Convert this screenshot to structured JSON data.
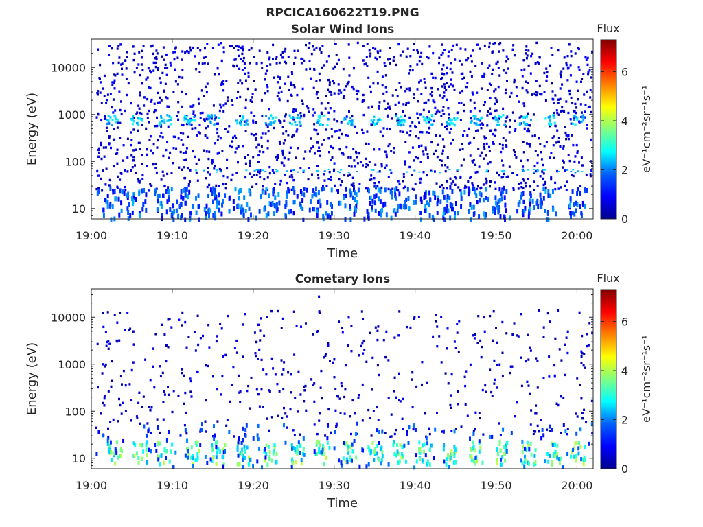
{
  "figure_title": "RPCICA160622T19.PNG",
  "colormap": [
    "#00008f",
    "#0000ff",
    "#0080ff",
    "#00ffff",
    "#80ff80",
    "#ffff00",
    "#ff8000",
    "#ff0000",
    "#800000"
  ],
  "chart_data": [
    {
      "type": "heatmap",
      "title": "Solar Wind Ions",
      "xlabel": "Time",
      "ylabel": "Energy (eV)",
      "x_ticks": [
        "19:00",
        "19:10",
        "19:20",
        "19:30",
        "19:40",
        "19:50",
        "20:00"
      ],
      "x_range_minutes": [
        0,
        62
      ],
      "y_scale": "log",
      "y_ticks": [
        "10",
        "100",
        "1000",
        "10000"
      ],
      "y_range": [
        6,
        40000
      ],
      "colorbar": {
        "label": "Flux",
        "unit": "eV⁻¹cm⁻²sr⁻¹s⁻¹",
        "ticks": [
          "0",
          "2",
          "4",
          "6"
        ],
        "range": [
          0,
          7.3
        ]
      },
      "features": {
        "peak_energy_eV": 800,
        "peak_flux": 2.5,
        "peak_times_minutes": [
          2.5,
          5.5,
          9,
          12,
          15,
          18.5,
          22,
          25,
          28.5,
          31.5,
          35,
          38,
          41.5,
          44.5,
          47.5,
          50.5,
          53.5,
          56.5,
          60
        ],
        "low_energy_band_eV": [
          6,
          30
        ],
        "low_energy_flux": 1.5,
        "background_flux": 0.6
      }
    },
    {
      "type": "heatmap",
      "title": "Cometary Ions",
      "xlabel": "Time",
      "ylabel": "Energy (eV)",
      "x_ticks": [
        "19:00",
        "19:10",
        "19:20",
        "19:30",
        "19:40",
        "19:50",
        "20:00"
      ],
      "x_range_minutes": [
        0,
        62
      ],
      "y_scale": "log",
      "y_ticks": [
        "10",
        "100",
        "1000",
        "10000"
      ],
      "y_range": [
        6,
        40000
      ],
      "colorbar": {
        "label": "Flux",
        "unit": "eV⁻¹cm⁻²sr⁻¹s⁻¹",
        "ticks": [
          "0",
          "2",
          "4",
          "6"
        ],
        "range": [
          0,
          7.3
        ]
      },
      "features": {
        "burst_times_minutes": [
          2.8,
          6,
          9,
          12.3,
          15.5,
          18.7,
          22,
          25.3,
          28.5,
          31.7,
          35,
          38,
          41,
          44.3,
          47.5,
          50.8,
          54,
          57,
          60
        ],
        "burst_energy_eV": [
          8,
          25
        ],
        "burst_flux": 3.8,
        "background_flux": 0.5
      }
    }
  ]
}
